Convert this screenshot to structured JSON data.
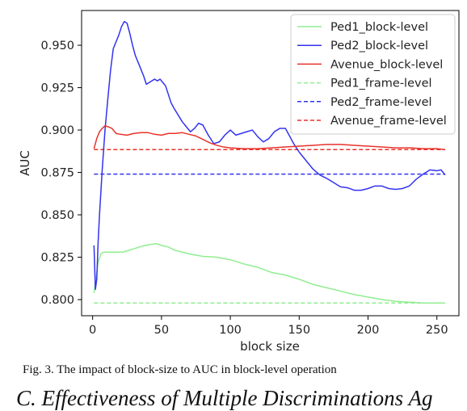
{
  "chart_data": {
    "type": "line",
    "xlabel": "block size",
    "ylabel": "AUC",
    "xlim": [
      -8,
      266
    ],
    "ylim": [
      0.7905,
      0.9705
    ],
    "xticks": [
      0,
      50,
      100,
      150,
      200,
      250
    ],
    "yticks": [
      0.8,
      0.825,
      0.85,
      0.875,
      0.9,
      0.925,
      0.95
    ],
    "ytick_labels": [
      "0.800",
      "0.825",
      "0.850",
      "0.875",
      "0.900",
      "0.925",
      "0.950"
    ],
    "legend_position": "top-right",
    "series": [
      {
        "name": "Ped1_block-level",
        "color": "#90ee90",
        "style": "solid",
        "x": [
          1,
          2,
          4,
          6,
          8,
          10,
          14,
          18,
          22,
          26,
          30,
          34,
          38,
          42,
          46,
          50,
          55,
          60,
          70,
          80,
          90,
          100,
          110,
          120,
          130,
          140,
          150,
          160,
          170,
          180,
          190,
          200,
          210,
          220,
          230,
          240,
          250,
          256
        ],
        "y": [
          0.804,
          0.81,
          0.822,
          0.827,
          0.828,
          0.828,
          0.828,
          0.828,
          0.828,
          0.829,
          0.83,
          0.831,
          0.832,
          0.8325,
          0.833,
          0.832,
          0.831,
          0.829,
          0.827,
          0.8255,
          0.825,
          0.8235,
          0.821,
          0.819,
          0.816,
          0.8145,
          0.812,
          0.809,
          0.807,
          0.805,
          0.803,
          0.8015,
          0.8,
          0.799,
          0.7985,
          0.798,
          0.798,
          0.798
        ]
      },
      {
        "name": "Ped2_block-level",
        "color": "#3333ee",
        "style": "solid",
        "x": [
          1,
          2,
          3,
          4,
          5,
          7,
          9,
          11,
          13,
          15,
          17,
          19,
          21,
          23,
          25,
          27,
          29,
          31,
          33,
          35,
          37,
          39,
          41,
          43,
          45,
          47,
          49,
          51,
          53,
          55,
          57,
          59,
          62,
          65,
          68,
          71,
          74,
          77,
          80,
          84,
          88,
          92,
          96,
          100,
          104,
          108,
          112,
          116,
          120,
          124,
          128,
          132,
          136,
          140,
          142,
          146,
          150,
          155,
          160,
          165,
          170,
          175,
          180,
          185,
          190,
          195,
          200,
          205,
          210,
          215,
          220,
          225,
          230,
          235,
          240,
          245,
          250,
          253,
          256
        ],
        "y": [
          0.832,
          0.806,
          0.812,
          0.834,
          0.85,
          0.877,
          0.9,
          0.918,
          0.935,
          0.948,
          0.952,
          0.956,
          0.961,
          0.964,
          0.963,
          0.957,
          0.95,
          0.944,
          0.94,
          0.936,
          0.932,
          0.927,
          0.928,
          0.929,
          0.93,
          0.929,
          0.93,
          0.928,
          0.926,
          0.921,
          0.916,
          0.913,
          0.909,
          0.905,
          0.902,
          0.899,
          0.901,
          0.904,
          0.903,
          0.897,
          0.892,
          0.893,
          0.897,
          0.9,
          0.897,
          0.898,
          0.899,
          0.9,
          0.896,
          0.893,
          0.895,
          0.899,
          0.901,
          0.901,
          0.898,
          0.892,
          0.887,
          0.882,
          0.877,
          0.8735,
          0.8715,
          0.869,
          0.8665,
          0.866,
          0.8645,
          0.8645,
          0.8655,
          0.867,
          0.867,
          0.8655,
          0.865,
          0.8655,
          0.867,
          0.871,
          0.874,
          0.8765,
          0.876,
          0.8765,
          0.8735
        ]
      },
      {
        "name": "Avenue_block-level",
        "color": "#e8332a",
        "style": "solid",
        "x": [
          1,
          3,
          5,
          7,
          9,
          11,
          14,
          17,
          20,
          25,
          30,
          35,
          40,
          45,
          50,
          55,
          60,
          65,
          70,
          75,
          80,
          85,
          90,
          95,
          100,
          110,
          120,
          130,
          140,
          150,
          160,
          170,
          180,
          190,
          200,
          210,
          220,
          230,
          240,
          250,
          256
        ],
        "y": [
          0.889,
          0.895,
          0.899,
          0.901,
          0.9025,
          0.902,
          0.901,
          0.898,
          0.8975,
          0.897,
          0.898,
          0.8985,
          0.8985,
          0.8975,
          0.897,
          0.898,
          0.898,
          0.8985,
          0.8975,
          0.8965,
          0.8945,
          0.8925,
          0.891,
          0.89,
          0.8895,
          0.889,
          0.889,
          0.8895,
          0.89,
          0.8905,
          0.891,
          0.8915,
          0.8915,
          0.891,
          0.8905,
          0.89,
          0.8895,
          0.8895,
          0.889,
          0.889,
          0.8885
        ]
      },
      {
        "name": "Ped1_frame-level",
        "color": "#90ee90",
        "style": "dashed",
        "x": [
          1,
          256
        ],
        "y": [
          0.798,
          0.798
        ]
      },
      {
        "name": "Ped2_frame-level",
        "color": "#3333ee",
        "style": "dashed",
        "x": [
          1,
          256
        ],
        "y": [
          0.874,
          0.874
        ]
      },
      {
        "name": "Avenue_frame-level",
        "color": "#e8332a",
        "style": "dashed",
        "x": [
          1,
          256
        ],
        "y": [
          0.8885,
          0.8885
        ]
      }
    ]
  },
  "caption": "Fig. 3. The impact of block-size to AUC in block-level operation",
  "footer": "C.    Effectiveness of Multiple Discriminations Ag"
}
